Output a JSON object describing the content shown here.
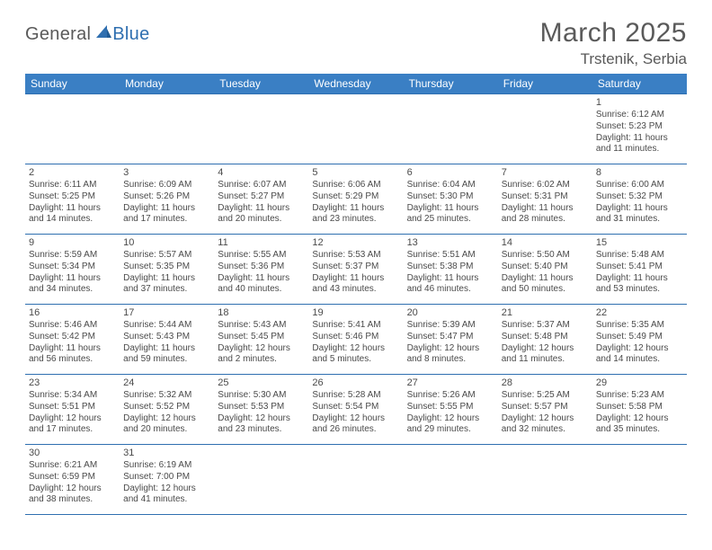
{
  "brand": {
    "part1": "General",
    "part2": "Blue"
  },
  "title": "March 2025",
  "location": "Trstenik, Serbia",
  "colors": {
    "header_bg": "#3a7fc4",
    "border": "#2f6fb0",
    "text": "#4a4a4a",
    "brand_blue": "#2f6fb0",
    "background": "#ffffff"
  },
  "dayHeaders": [
    "Sunday",
    "Monday",
    "Tuesday",
    "Wednesday",
    "Thursday",
    "Friday",
    "Saturday"
  ],
  "weeks": [
    [
      null,
      null,
      null,
      null,
      null,
      null,
      {
        "n": "1",
        "sr": "Sunrise: 6:12 AM",
        "ss": "Sunset: 5:23 PM",
        "d1": "Daylight: 11 hours",
        "d2": "and 11 minutes."
      }
    ],
    [
      {
        "n": "2",
        "sr": "Sunrise: 6:11 AM",
        "ss": "Sunset: 5:25 PM",
        "d1": "Daylight: 11 hours",
        "d2": "and 14 minutes."
      },
      {
        "n": "3",
        "sr": "Sunrise: 6:09 AM",
        "ss": "Sunset: 5:26 PM",
        "d1": "Daylight: 11 hours",
        "d2": "and 17 minutes."
      },
      {
        "n": "4",
        "sr": "Sunrise: 6:07 AM",
        "ss": "Sunset: 5:27 PM",
        "d1": "Daylight: 11 hours",
        "d2": "and 20 minutes."
      },
      {
        "n": "5",
        "sr": "Sunrise: 6:06 AM",
        "ss": "Sunset: 5:29 PM",
        "d1": "Daylight: 11 hours",
        "d2": "and 23 minutes."
      },
      {
        "n": "6",
        "sr": "Sunrise: 6:04 AM",
        "ss": "Sunset: 5:30 PM",
        "d1": "Daylight: 11 hours",
        "d2": "and 25 minutes."
      },
      {
        "n": "7",
        "sr": "Sunrise: 6:02 AM",
        "ss": "Sunset: 5:31 PM",
        "d1": "Daylight: 11 hours",
        "d2": "and 28 minutes."
      },
      {
        "n": "8",
        "sr": "Sunrise: 6:00 AM",
        "ss": "Sunset: 5:32 PM",
        "d1": "Daylight: 11 hours",
        "d2": "and 31 minutes."
      }
    ],
    [
      {
        "n": "9",
        "sr": "Sunrise: 5:59 AM",
        "ss": "Sunset: 5:34 PM",
        "d1": "Daylight: 11 hours",
        "d2": "and 34 minutes."
      },
      {
        "n": "10",
        "sr": "Sunrise: 5:57 AM",
        "ss": "Sunset: 5:35 PM",
        "d1": "Daylight: 11 hours",
        "d2": "and 37 minutes."
      },
      {
        "n": "11",
        "sr": "Sunrise: 5:55 AM",
        "ss": "Sunset: 5:36 PM",
        "d1": "Daylight: 11 hours",
        "d2": "and 40 minutes."
      },
      {
        "n": "12",
        "sr": "Sunrise: 5:53 AM",
        "ss": "Sunset: 5:37 PM",
        "d1": "Daylight: 11 hours",
        "d2": "and 43 minutes."
      },
      {
        "n": "13",
        "sr": "Sunrise: 5:51 AM",
        "ss": "Sunset: 5:38 PM",
        "d1": "Daylight: 11 hours",
        "d2": "and 46 minutes."
      },
      {
        "n": "14",
        "sr": "Sunrise: 5:50 AM",
        "ss": "Sunset: 5:40 PM",
        "d1": "Daylight: 11 hours",
        "d2": "and 50 minutes."
      },
      {
        "n": "15",
        "sr": "Sunrise: 5:48 AM",
        "ss": "Sunset: 5:41 PM",
        "d1": "Daylight: 11 hours",
        "d2": "and 53 minutes."
      }
    ],
    [
      {
        "n": "16",
        "sr": "Sunrise: 5:46 AM",
        "ss": "Sunset: 5:42 PM",
        "d1": "Daylight: 11 hours",
        "d2": "and 56 minutes."
      },
      {
        "n": "17",
        "sr": "Sunrise: 5:44 AM",
        "ss": "Sunset: 5:43 PM",
        "d1": "Daylight: 11 hours",
        "d2": "and 59 minutes."
      },
      {
        "n": "18",
        "sr": "Sunrise: 5:43 AM",
        "ss": "Sunset: 5:45 PM",
        "d1": "Daylight: 12 hours",
        "d2": "and 2 minutes."
      },
      {
        "n": "19",
        "sr": "Sunrise: 5:41 AM",
        "ss": "Sunset: 5:46 PM",
        "d1": "Daylight: 12 hours",
        "d2": "and 5 minutes."
      },
      {
        "n": "20",
        "sr": "Sunrise: 5:39 AM",
        "ss": "Sunset: 5:47 PM",
        "d1": "Daylight: 12 hours",
        "d2": "and 8 minutes."
      },
      {
        "n": "21",
        "sr": "Sunrise: 5:37 AM",
        "ss": "Sunset: 5:48 PM",
        "d1": "Daylight: 12 hours",
        "d2": "and 11 minutes."
      },
      {
        "n": "22",
        "sr": "Sunrise: 5:35 AM",
        "ss": "Sunset: 5:49 PM",
        "d1": "Daylight: 12 hours",
        "d2": "and 14 minutes."
      }
    ],
    [
      {
        "n": "23",
        "sr": "Sunrise: 5:34 AM",
        "ss": "Sunset: 5:51 PM",
        "d1": "Daylight: 12 hours",
        "d2": "and 17 minutes."
      },
      {
        "n": "24",
        "sr": "Sunrise: 5:32 AM",
        "ss": "Sunset: 5:52 PM",
        "d1": "Daylight: 12 hours",
        "d2": "and 20 minutes."
      },
      {
        "n": "25",
        "sr": "Sunrise: 5:30 AM",
        "ss": "Sunset: 5:53 PM",
        "d1": "Daylight: 12 hours",
        "d2": "and 23 minutes."
      },
      {
        "n": "26",
        "sr": "Sunrise: 5:28 AM",
        "ss": "Sunset: 5:54 PM",
        "d1": "Daylight: 12 hours",
        "d2": "and 26 minutes."
      },
      {
        "n": "27",
        "sr": "Sunrise: 5:26 AM",
        "ss": "Sunset: 5:55 PM",
        "d1": "Daylight: 12 hours",
        "d2": "and 29 minutes."
      },
      {
        "n": "28",
        "sr": "Sunrise: 5:25 AM",
        "ss": "Sunset: 5:57 PM",
        "d1": "Daylight: 12 hours",
        "d2": "and 32 minutes."
      },
      {
        "n": "29",
        "sr": "Sunrise: 5:23 AM",
        "ss": "Sunset: 5:58 PM",
        "d1": "Daylight: 12 hours",
        "d2": "and 35 minutes."
      }
    ],
    [
      {
        "n": "30",
        "sr": "Sunrise: 6:21 AM",
        "ss": "Sunset: 6:59 PM",
        "d1": "Daylight: 12 hours",
        "d2": "and 38 minutes."
      },
      {
        "n": "31",
        "sr": "Sunrise: 6:19 AM",
        "ss": "Sunset: 7:00 PM",
        "d1": "Daylight: 12 hours",
        "d2": "and 41 minutes."
      },
      null,
      null,
      null,
      null,
      null
    ]
  ]
}
